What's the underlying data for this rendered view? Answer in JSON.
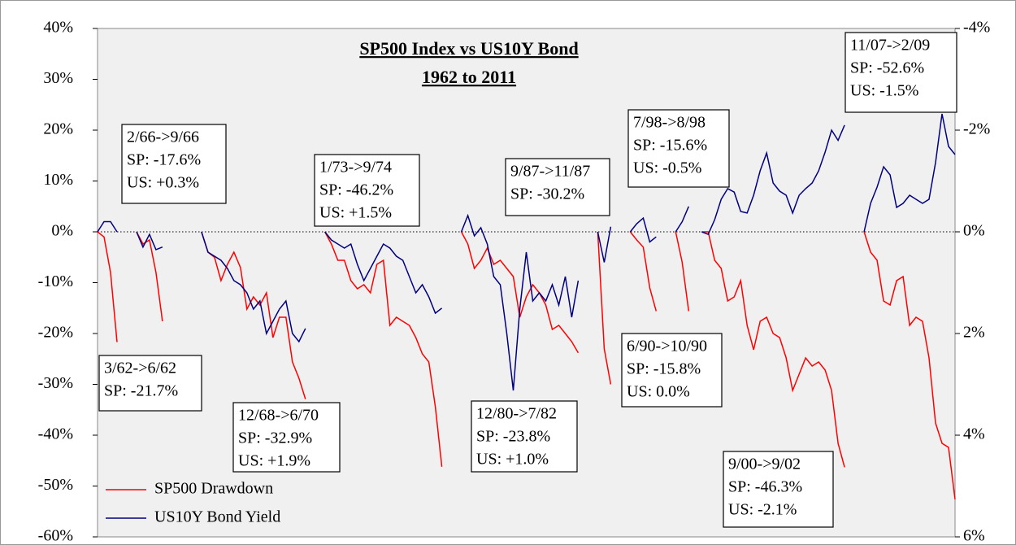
{
  "chart_data": {
    "type": "line",
    "title": "SP500 Index vs US10Y Bond",
    "subtitle": "1962 to 2011",
    "ylim": [
      -60,
      40
    ],
    "yticks": [
      {
        "value": -60,
        "label": "-60%"
      },
      {
        "value": -50,
        "label": "-50%"
      },
      {
        "value": -40,
        "label": "-40%"
      },
      {
        "value": -30,
        "label": "-30%"
      },
      {
        "value": -20,
        "label": "-20%"
      },
      {
        "value": -10,
        "label": "-10%"
      },
      {
        "value": 0,
        "label": "0%"
      },
      {
        "value": 10,
        "label": "10%"
      },
      {
        "value": 20,
        "label": "20%"
      },
      {
        "value": 30,
        "label": "30%"
      },
      {
        "value": 40,
        "label": "40%"
      }
    ],
    "y2lim": [
      6,
      -4
    ],
    "y2ticks": [
      {
        "value": 6,
        "label": "6%"
      },
      {
        "value": 4,
        "label": "4%"
      },
      {
        "value": 2,
        "label": "2%"
      },
      {
        "value": 0,
        "label": "0%"
      },
      {
        "value": -2,
        "label": "-2%"
      },
      {
        "value": -4,
        "label": "-4%"
      }
    ],
    "legend": "lower left",
    "series": [
      {
        "name": "SP500 Drawdown",
        "color": "#ff0000",
        "values": [
          0,
          -1,
          -8,
          -21.7,
          null,
          null,
          0,
          -2.4,
          -1.6,
          -8,
          -17.6,
          null,
          null,
          null,
          null,
          null,
          0,
          -4,
          -5,
          -9.6,
          -6.4,
          -4,
          -7,
          -15.2,
          -12.8,
          -14.4,
          -12,
          -20.8,
          -16.8,
          -16.8,
          -25.6,
          -28.8,
          -32.9,
          null,
          null,
          0,
          -2.4,
          -5.6,
          -5.6,
          -9.6,
          -11.2,
          -10.4,
          -12,
          -6.4,
          -5.6,
          -18.4,
          -16.8,
          -17.6,
          -18.4,
          -20.8,
          -24,
          -25.6,
          -34.4,
          -46.2,
          null,
          null,
          0,
          -2.4,
          -7.2,
          -5.6,
          -3.2,
          -6.4,
          -5.6,
          -7.2,
          -8.8,
          -16.8,
          -12.8,
          -10.4,
          -12,
          -14.4,
          -19.2,
          -18.4,
          -20,
          -21.6,
          -23.8,
          null,
          null,
          0,
          -23,
          -30,
          null,
          null,
          0,
          -1.6,
          -3,
          -11,
          -15.6,
          null,
          null,
          0,
          -6,
          -15.6,
          null,
          0,
          0,
          -5.6,
          -7.2,
          -13.6,
          -12.8,
          -9.6,
          -18.4,
          -23.2,
          -17.6,
          -16.8,
          -20,
          -20.8,
          -24.8,
          -31.2,
          -28,
          -24.8,
          -26.4,
          -25.6,
          -27.2,
          -31.2,
          -41.6,
          -46.3,
          null,
          null,
          0,
          -4,
          -5.6,
          -13.6,
          -14.4,
          -9.6,
          -8.8,
          -18.4,
          -16.8,
          -17.6,
          -24.8,
          -37.6,
          -41.6,
          -42.4,
          -52.6
        ]
      },
      {
        "name": "US10Y Bond Yield",
        "color": "#000080",
        "axis": "y2",
        "values": [
          0,
          -0.2,
          -0.2,
          0,
          null,
          null,
          0,
          0.3,
          0.05,
          0.35,
          0.3,
          null,
          null,
          null,
          null,
          null,
          0,
          0.4,
          0.48,
          0.56,
          0.72,
          0.96,
          1.04,
          1.2,
          1.52,
          1.36,
          2.0,
          1.76,
          1.52,
          1.36,
          2.0,
          2.16,
          1.9,
          null,
          null,
          0,
          0.16,
          0.24,
          0.32,
          0.24,
          0.64,
          0.96,
          0.72,
          0.48,
          0.24,
          0.32,
          0.48,
          0.56,
          0.88,
          1.2,
          1.04,
          1.28,
          1.6,
          1.5,
          null,
          null,
          0,
          -0.32,
          0.08,
          -0.08,
          0.24,
          0.88,
          1.04,
          2.0,
          3.12,
          1.52,
          0.4,
          1.36,
          1.2,
          1.36,
          1.04,
          1.44,
          0.88,
          1.68,
          0.96,
          null,
          null,
          0,
          0.6,
          -0.1,
          null,
          null,
          0,
          -0.16,
          -0.27,
          0.2,
          0.1,
          null,
          null,
          0,
          -0.2,
          -0.5,
          null,
          0,
          0.05,
          -0.24,
          -0.64,
          -0.85,
          -0.78,
          -0.4,
          -0.37,
          -0.72,
          -1.2,
          -1.55,
          -0.96,
          -0.8,
          -0.72,
          -0.37,
          -0.72,
          -0.85,
          -0.96,
          -1.2,
          -1.57,
          -2.0,
          -1.8,
          -2.1,
          null,
          null,
          0,
          -0.56,
          -0.88,
          -1.28,
          -1.12,
          -0.48,
          -0.56,
          -0.72,
          -0.64,
          -0.56,
          -0.64,
          -1.36,
          -2.32,
          -1.68,
          -1.52
        ]
      }
    ],
    "annotations": [
      {
        "lines": [
          "2/66->9/66",
          "SP: -17.6%",
          "US: +0.3%"
        ]
      },
      {
        "lines": [
          "3/62->6/62",
          "SP: -21.7%"
        ]
      },
      {
        "lines": [
          "12/68->6/70",
          "SP: -32.9%",
          "US: +1.9%"
        ]
      },
      {
        "lines": [
          "1/73->9/74",
          "SP: -46.2%",
          "US: +1.5%"
        ]
      },
      {
        "lines": [
          "9/87->11/87",
          "SP: -30.2%"
        ]
      },
      {
        "lines": [
          "12/80->7/82",
          "SP: -23.8%",
          "US: +1.0%"
        ]
      },
      {
        "lines": [
          "7/98->8/98",
          "SP: -15.6%",
          "US: -0.5%"
        ]
      },
      {
        "lines": [
          "6/90->10/90",
          "SP: -15.8%",
          "US: 0.0%"
        ]
      },
      {
        "lines": [
          "9/00->9/02",
          "SP: -46.3%",
          "US: -2.1%"
        ]
      },
      {
        "lines": [
          "11/07->2/09",
          "SP: -52.6%",
          "US: -1.5%"
        ]
      }
    ]
  }
}
